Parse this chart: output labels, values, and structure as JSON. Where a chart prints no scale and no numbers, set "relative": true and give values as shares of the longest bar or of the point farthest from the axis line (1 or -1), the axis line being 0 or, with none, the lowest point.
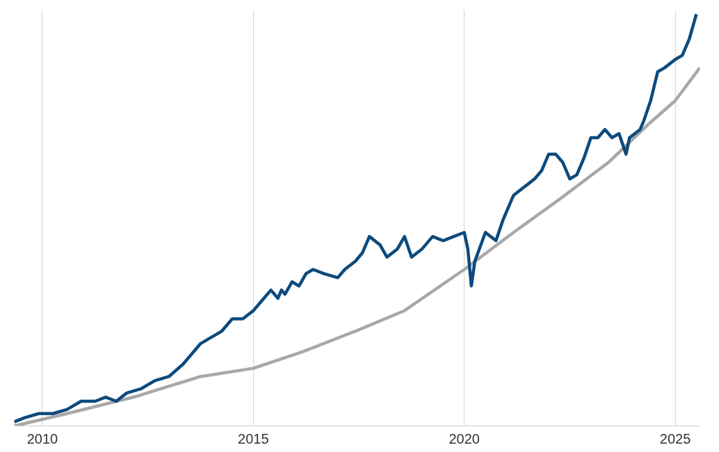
{
  "chart_data": {
    "type": "line",
    "relative": true,
    "xlim": [
      "2009-05",
      "2025-08"
    ],
    "xticks": [
      "2010",
      "2015",
      "2020",
      "2025"
    ],
    "grid": "x",
    "tick_labels": "x",
    "line_style": "solid",
    "marker": "none",
    "series": [
      {
        "color": "#a8a8a8",
        "x": [
          "2009-05",
          "2010-08",
          "2012-03",
          "2013-10",
          "2015-01",
          "2016-03",
          "2017-06",
          "2018-08",
          "2020-01",
          "2021-03",
          "2022-04",
          "2023-06",
          "2024-05",
          "2025-01",
          "2025-08"
        ],
        "values": [
          0.0,
          0.03,
          0.07,
          0.12,
          0.14,
          0.18,
          0.23,
          0.28,
          0.38,
          0.47,
          0.55,
          0.64,
          0.73,
          0.79,
          0.87
        ]
      },
      {
        "color": "#0d4a7c",
        "x": [
          "2009-05",
          "2009-08",
          "2009-12",
          "2010-04",
          "2010-08",
          "2010-12",
          "2011-04",
          "2011-07",
          "2011-10",
          "2012-01",
          "2012-05",
          "2012-09",
          "2013-01",
          "2013-05",
          "2013-08",
          "2013-10",
          "2013-12",
          "2014-04",
          "2014-07",
          "2014-10",
          "2015-01",
          "2015-04",
          "2015-06",
          "2015-08",
          "2015-09",
          "2015-10",
          "2015-12",
          "2016-02",
          "2016-04",
          "2016-06",
          "2016-09",
          "2017-01",
          "2017-03",
          "2017-06",
          "2017-08",
          "2017-10",
          "2018-01",
          "2018-03",
          "2018-06",
          "2018-08",
          "2018-10",
          "2019-01",
          "2019-04",
          "2019-07",
          "2019-10",
          "2020-01",
          "2020-02",
          "2020-03",
          "2020-04",
          "2020-07",
          "2020-10",
          "2020-12",
          "2021-03",
          "2021-06",
          "2021-09",
          "2021-11",
          "2022-01",
          "2022-03",
          "2022-05",
          "2022-07",
          "2022-09",
          "2022-11",
          "2023-01",
          "2023-03",
          "2023-05",
          "2023-07",
          "2023-09",
          "2023-11",
          "2023-12",
          "2024-03",
          "2024-04",
          "2024-06",
          "2024-08",
          "2024-10",
          "2025-01",
          "2025-03",
          "2025-05",
          "2025-07"
        ],
        "values": [
          0.01,
          0.02,
          0.03,
          0.03,
          0.04,
          0.06,
          0.06,
          0.07,
          0.06,
          0.08,
          0.09,
          0.11,
          0.12,
          0.15,
          0.18,
          0.2,
          0.21,
          0.23,
          0.26,
          0.26,
          0.28,
          0.31,
          0.33,
          0.31,
          0.33,
          0.32,
          0.35,
          0.34,
          0.37,
          0.38,
          0.37,
          0.36,
          0.38,
          0.4,
          0.42,
          0.46,
          0.44,
          0.41,
          0.43,
          0.46,
          0.41,
          0.43,
          0.46,
          0.45,
          0.46,
          0.47,
          0.43,
          0.34,
          0.4,
          0.47,
          0.45,
          0.5,
          0.56,
          0.58,
          0.6,
          0.62,
          0.66,
          0.66,
          0.64,
          0.6,
          0.61,
          0.65,
          0.7,
          0.7,
          0.72,
          0.7,
          0.71,
          0.66,
          0.7,
          0.72,
          0.74,
          0.79,
          0.86,
          0.87,
          0.89,
          0.9,
          0.94,
          1.0
        ]
      }
    ]
  }
}
